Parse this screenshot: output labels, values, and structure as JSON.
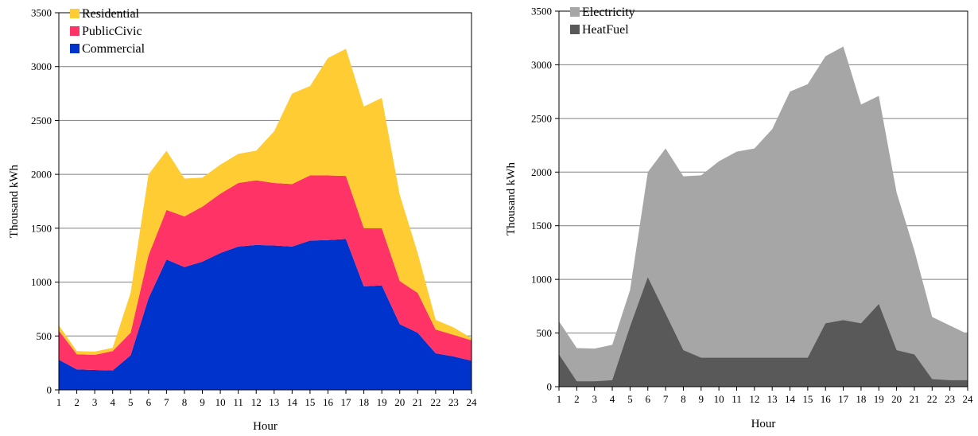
{
  "chart_data": [
    {
      "type": "area",
      "stacked": true,
      "x": [
        1,
        2,
        3,
        4,
        5,
        6,
        7,
        8,
        9,
        10,
        11,
        12,
        13,
        14,
        15,
        16,
        17,
        18,
        19,
        20,
        21,
        22,
        23,
        24
      ],
      "xlabel": "Hour",
      "ylabel": "Thousand kWh",
      "ylim": [
        0,
        3500
      ],
      "yticks": [
        0,
        500,
        1000,
        1500,
        2000,
        2500,
        3000,
        3500
      ],
      "grid": true,
      "legend_position": "top-left",
      "series": [
        {
          "name": "Commercial",
          "color": "#0033cc",
          "values": [
            280,
            190,
            185,
            180,
            320,
            850,
            1210,
            1140,
            1190,
            1270,
            1330,
            1345,
            1340,
            1330,
            1385,
            1390,
            1400,
            960,
            970,
            610,
            530,
            340,
            310,
            270
          ]
        },
        {
          "name": "PublicCivic",
          "color": "#ff3366",
          "values": [
            270,
            140,
            140,
            180,
            210,
            400,
            460,
            470,
            510,
            550,
            590,
            600,
            580,
            580,
            605,
            600,
            585,
            540,
            530,
            400,
            370,
            220,
            200,
            190
          ]
        },
        {
          "name": "Residential",
          "color": "#ffcc33",
          "values": [
            50,
            30,
            30,
            30,
            370,
            750,
            550,
            350,
            270,
            270,
            270,
            275,
            480,
            840,
            830,
            1090,
            1180,
            1130,
            1210,
            800,
            370,
            90,
            70,
            20
          ]
        }
      ],
      "legend_order": [
        "Residential",
        "PublicCivic",
        "Commercial"
      ]
    },
    {
      "type": "area",
      "stacked": false,
      "x": [
        1,
        2,
        3,
        4,
        5,
        6,
        7,
        8,
        9,
        10,
        11,
        12,
        13,
        14,
        15,
        16,
        17,
        18,
        19,
        20,
        21,
        22,
        23,
        24
      ],
      "xlabel": "Hour",
      "ylabel": "Thousand kWh",
      "ylim": [
        0,
        3500
      ],
      "yticks": [
        0,
        500,
        1000,
        1500,
        2000,
        2500,
        3000,
        3500
      ],
      "grid": true,
      "legend_position": "top-left",
      "series": [
        {
          "name": "Electricity",
          "color": "#a6a6a6",
          "values": [
            610,
            360,
            355,
            390,
            900,
            2000,
            2220,
            1960,
            1970,
            2100,
            2190,
            2220,
            2400,
            2750,
            2820,
            3080,
            3170,
            2630,
            2710,
            1810,
            1270,
            650,
            570,
            490
          ]
        },
        {
          "name": "HeatFuel",
          "color": "#595959",
          "values": [
            300,
            50,
            50,
            60,
            560,
            1020,
            680,
            340,
            270,
            270,
            270,
            270,
            270,
            270,
            270,
            590,
            620,
            590,
            770,
            340,
            300,
            70,
            60,
            60
          ]
        }
      ],
      "legend_order": [
        "Electricity",
        "HeatFuel"
      ]
    }
  ]
}
